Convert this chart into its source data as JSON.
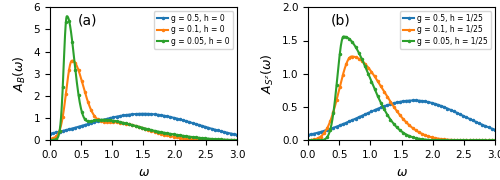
{
  "panel_a": {
    "label": "(a)",
    "ylim": [
      0,
      6.0
    ],
    "yticks": [
      0,
      1.0,
      2.0,
      3.0,
      4.0,
      5.0,
      6.0
    ],
    "legend_labels": [
      "g = 0.5, h = 0",
      "g = 0.1, h = 0",
      "g = 0.05, h = 0"
    ]
  },
  "panel_b": {
    "label": "(b)",
    "ylim": [
      0,
      2.0
    ],
    "yticks": [
      0,
      0.5,
      1.0,
      1.5,
      2.0
    ],
    "legend_labels": [
      "g = 0.5, h = 1/25",
      "g = 0.1, h = 1/25",
      "g = 0.05, h = 1/25"
    ]
  },
  "xlim": [
    0,
    3.0
  ],
  "xticks": [
    0,
    0.5,
    1.0,
    1.5,
    2.0,
    2.5,
    3.0
  ],
  "line_width": 1.5,
  "colors": [
    "#1f77b4",
    "#ff7f0e",
    "#2ca02c"
  ]
}
